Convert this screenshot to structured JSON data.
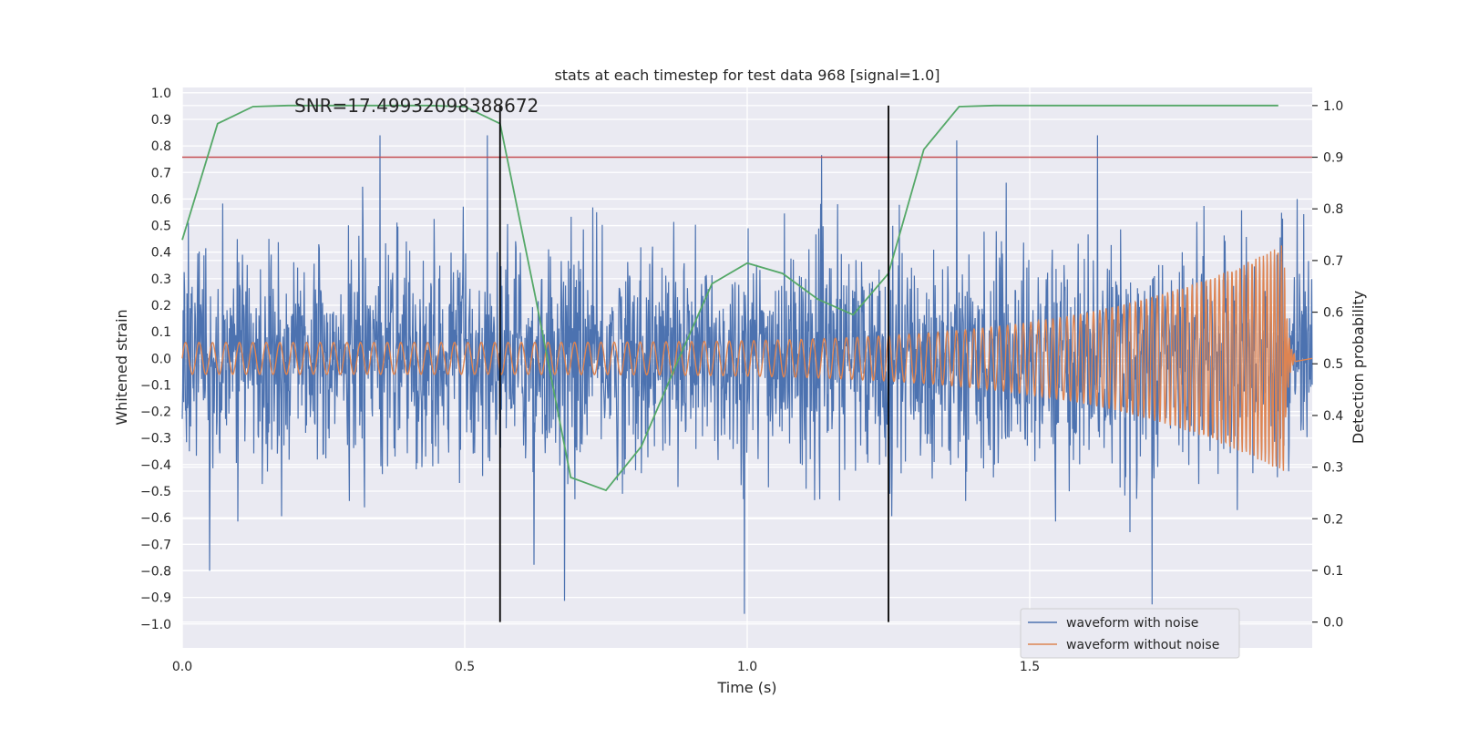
{
  "chart_data": {
    "type": "line",
    "title": "stats at each timestep for test data 968 [signal=1.0]",
    "annotation": "SNR=17.49932098388672",
    "xlabel": "Time (s)",
    "ylabel_left": "Whitened strain",
    "ylabel_right": "Detection probability",
    "xlim": [
      0.0,
      2.0
    ],
    "ylim_left": [
      -1.09,
      1.02
    ],
    "ylim_right": [
      -0.05,
      1.035
    ],
    "x_ticks": [
      "0.0",
      "0.5",
      "1.0",
      "1.5"
    ],
    "x_tick_values": [
      0.0,
      0.5,
      1.0,
      1.5
    ],
    "y_ticks_left": [
      "1.0",
      "0.9",
      "0.8",
      "0.7",
      "0.6",
      "0.5",
      "0.4",
      "0.3",
      "0.2",
      "0.1",
      "0.0",
      "−0.1",
      "−0.2",
      "−0.3",
      "−0.4",
      "−0.5",
      "−0.6",
      "−0.7",
      "−0.8",
      "−0.9",
      "−1.0"
    ],
    "y_tick_values_left": [
      1.0,
      0.9,
      0.8,
      0.7,
      0.6,
      0.5,
      0.4,
      0.3,
      0.2,
      0.1,
      0.0,
      -0.1,
      -0.2,
      -0.3,
      -0.4,
      -0.5,
      -0.6,
      -0.7,
      -0.8,
      -0.9,
      -1.0
    ],
    "y_ticks_right": [
      "1.0",
      "0.9",
      "0.8",
      "0.7",
      "0.6",
      "0.5",
      "0.4",
      "0.3",
      "0.2",
      "0.1",
      "0.0"
    ],
    "y_tick_values_right": [
      1.0,
      0.9,
      0.8,
      0.7,
      0.6,
      0.5,
      0.4,
      0.3,
      0.2,
      0.1,
      0.0
    ],
    "grid": true,
    "legend_position": "bottom-right",
    "series": [
      {
        "name": "waveform with noise",
        "axis": "left",
        "color": "#4c72b0",
        "description_values": {
          "t_start": 0.0,
          "t_end": 2.0,
          "amplitude_typical": 0.3,
          "min": -1.0,
          "max": 0.84
        }
      },
      {
        "name": "waveform without noise",
        "axis": "left",
        "color": "#dd8452",
        "description_values": {
          "t_start": 0.0,
          "t_end": 1.97,
          "amplitude_start": 0.06,
          "amplitude_peak": 0.43,
          "peak_time": 1.95
        }
      },
      {
        "name": "detection probability",
        "axis": "right",
        "color": "#55a868",
        "x": [
          0.0,
          0.0625,
          0.125,
          0.1875,
          0.25,
          0.3125,
          0.375,
          0.4375,
          0.5,
          0.5625,
          0.625,
          0.6875,
          0.75,
          0.8125,
          0.875,
          0.9375,
          1.0,
          1.0625,
          1.125,
          1.1875,
          1.25,
          1.3125,
          1.375,
          1.4375,
          1.5,
          1.5625,
          1.625,
          1.6875,
          1.75,
          1.8125,
          1.875,
          1.94
        ],
        "values": [
          0.74,
          0.965,
          0.998,
          1.0,
          1.0,
          1.0,
          1.0,
          1.0,
          0.998,
          0.965,
          0.63,
          0.28,
          0.255,
          0.34,
          0.5,
          0.655,
          0.695,
          0.675,
          0.625,
          0.595,
          0.675,
          0.915,
          0.998,
          1.0,
          1.0,
          1.0,
          1.0,
          1.0,
          1.0,
          1.0,
          1.0,
          1.0
        ]
      }
    ],
    "threshold_line": {
      "axis": "right",
      "value": 0.9,
      "color": "#c44e52"
    },
    "vertical_lines": [
      {
        "x": 0.5625,
        "color": "#000000"
      },
      {
        "x": 1.25,
        "color": "#000000"
      }
    ]
  }
}
